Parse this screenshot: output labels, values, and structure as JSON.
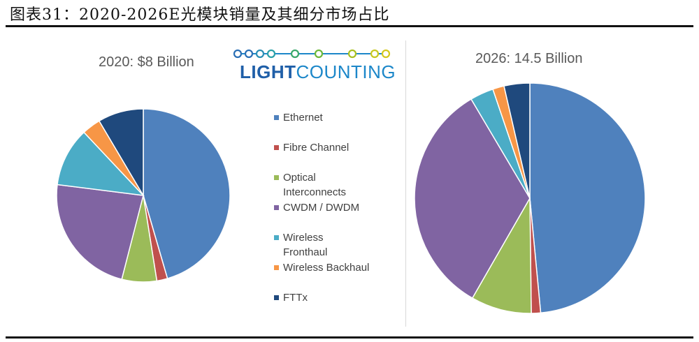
{
  "figure_title": "图表31：2020-2026E光模块销量及其细分市场占比",
  "logo": {
    "text_bold": "LIGHT",
    "text_light": "COUNTING"
  },
  "colors": {
    "Ethernet": "#4f81bd",
    "Fibre Channel": "#c0504d",
    "Optical Interconnects": "#9bbb59",
    "CWDM / DWDM": "#8064a2",
    "Wireless Fronthaul": "#4bacc6",
    "Wireless Backhaul": "#f79646",
    "FTTx": "#1f497d"
  },
  "chart_data": [
    {
      "type": "pie",
      "title": "2020: $8 Billion",
      "labels": [
        "Ethernet",
        "Fibre Channel",
        "Optical Interconnects",
        "CWDM / DWDM",
        "Wireless Fronthaul",
        "Wireless Backhaul",
        "FTTx"
      ],
      "values": [
        45.5,
        2,
        6.5,
        23,
        11,
        3.5,
        8.5
      ]
    },
    {
      "type": "pie",
      "title": "2026: 14.5 Billion",
      "labels": [
        "Ethernet",
        "Fibre Channel",
        "Optical Interconnects",
        "CWDM / DWDM",
        "Wireless Fronthaul",
        "Wireless Backhaul",
        "FTTx"
      ],
      "values": [
        48.5,
        1.3,
        8.5,
        33.2,
        3.3,
        1.6,
        3.6
      ]
    }
  ],
  "legend": [
    "Ethernet",
    "Fibre Channel",
    "Optical Interconnects",
    "CWDM / DWDM",
    "Wireless Fronthaul",
    "Wireless Backhaul",
    "FTTx"
  ]
}
